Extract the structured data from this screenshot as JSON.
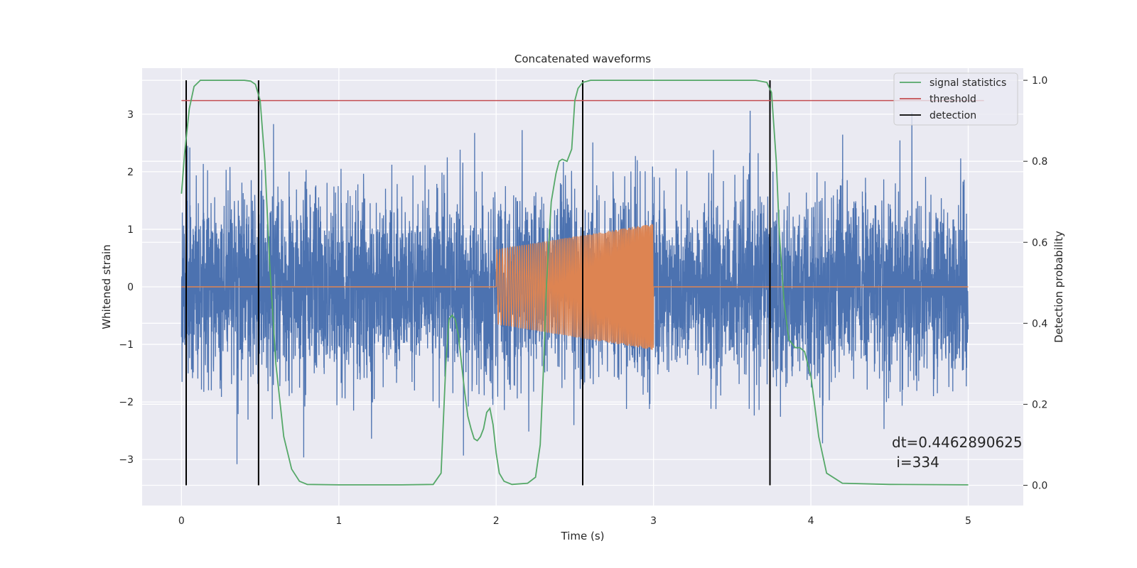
{
  "chart_data": {
    "type": "line",
    "title": "Concatenated waveforms",
    "xlabel": "Time (s)",
    "ylabel_left": "Whitened strain",
    "ylabel_right": "Detection probability",
    "xlim": [
      -0.25,
      5.35
    ],
    "ylim_left": [
      -3.8,
      3.8
    ],
    "ylim_right": [
      -0.05,
      1.03
    ],
    "x_ticks": [
      0,
      1,
      2,
      3,
      4,
      5
    ],
    "x_tick_labels": [
      "0",
      "1",
      "2",
      "3",
      "4",
      "5"
    ],
    "y_left_ticks": [
      -3,
      -2,
      -1,
      0,
      1,
      2,
      3
    ],
    "y_left_tick_labels": [
      "−3",
      "−2",
      "−1",
      "0",
      "1",
      "2",
      "3"
    ],
    "y_right_ticks": [
      0.0,
      0.2,
      0.4,
      0.6,
      0.8,
      1.0
    ],
    "y_right_tick_labels": [
      "0.0",
      "0.2",
      "0.4",
      "0.6",
      "0.8",
      "1.0"
    ],
    "grid": true,
    "legend_placement": "top-right",
    "colors": {
      "background": "#eaeaf2",
      "strain": "#4c72b0",
      "injected": "#dd8452",
      "signal_statistics": "#55a868",
      "threshold": "#c44e52",
      "detection": "#000000"
    },
    "series": [
      {
        "name": "",
        "kind": "whitened-strain-noise",
        "axis": "left",
        "x_range": [
          0,
          5
        ],
        "approx_std": 0.8,
        "approx_range": [
          -3.4,
          3.5
        ]
      },
      {
        "name": "",
        "kind": "injected-chirp",
        "axis": "left",
        "x_start": 2.0,
        "x_end": 3.0,
        "amplitude_start": 0.65,
        "amplitude_end": 1.1,
        "baseline": 0
      },
      {
        "name": "signal statistics",
        "axis": "right",
        "x": [
          0,
          0.02,
          0.05,
          0.08,
          0.12,
          0.2,
          0.3,
          0.4,
          0.44,
          0.47,
          0.5,
          0.53,
          0.56,
          0.6,
          0.65,
          0.7,
          0.75,
          0.8,
          1.0,
          1.2,
          1.4,
          1.6,
          1.65,
          1.68,
          1.7,
          1.72,
          1.74,
          1.76,
          1.78,
          1.8,
          1.82,
          1.84,
          1.86,
          1.88,
          1.9,
          1.92,
          1.94,
          1.96,
          1.98,
          2.0,
          2.02,
          2.05,
          2.1,
          2.2,
          2.25,
          2.28,
          2.3,
          2.32,
          2.35,
          2.38,
          2.4,
          2.42,
          2.45,
          2.48,
          2.5,
          2.52,
          2.55,
          2.6,
          2.7,
          2.8,
          3.0,
          3.5,
          3.65,
          3.72,
          3.75,
          3.78,
          3.8,
          3.83,
          3.86,
          3.9,
          3.93,
          3.96,
          4.0,
          4.05,
          4.1,
          4.2,
          4.5,
          5.0
        ],
        "values": [
          0.72,
          0.82,
          0.93,
          0.985,
          1.0,
          1.0,
          1.0,
          1.0,
          0.998,
          0.99,
          0.95,
          0.8,
          0.55,
          0.3,
          0.12,
          0.04,
          0.01,
          0.002,
          0.001,
          0.001,
          0.001,
          0.002,
          0.03,
          0.3,
          0.41,
          0.42,
          0.41,
          0.37,
          0.3,
          0.23,
          0.17,
          0.14,
          0.115,
          0.11,
          0.12,
          0.14,
          0.18,
          0.19,
          0.15,
          0.08,
          0.03,
          0.01,
          0.002,
          0.005,
          0.02,
          0.1,
          0.28,
          0.5,
          0.7,
          0.77,
          0.8,
          0.805,
          0.8,
          0.83,
          0.95,
          0.98,
          0.995,
          1.0,
          1.0,
          1.0,
          1.0,
          1.0,
          1.0,
          0.995,
          0.97,
          0.8,
          0.62,
          0.45,
          0.36,
          0.34,
          0.34,
          0.33,
          0.27,
          0.12,
          0.03,
          0.005,
          0.002,
          0.001
        ]
      },
      {
        "name": "threshold",
        "axis": "right",
        "x": [
          0,
          5.1
        ],
        "values": [
          0.95,
          0.95
        ]
      }
    ],
    "detections_x": [
      0.03,
      0.49,
      2.55,
      3.74
    ],
    "legend": [
      "signal statistics",
      "threshold",
      "detection"
    ],
    "annotations": [
      "dt=0.4462890625",
      " i=334"
    ]
  }
}
